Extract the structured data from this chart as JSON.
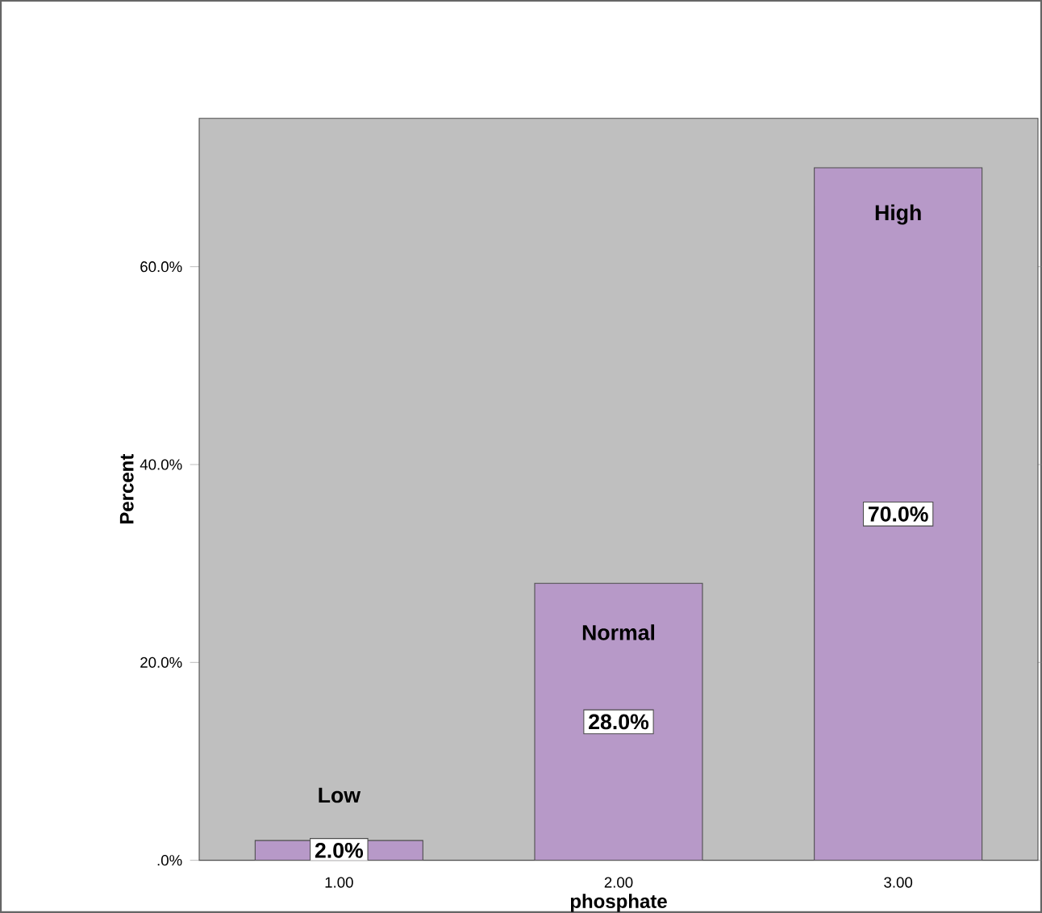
{
  "chart_data": {
    "type": "bar",
    "xlabel": "phosphate",
    "ylabel": "Percent",
    "categories": [
      "1.00",
      "2.00",
      "3.00"
    ],
    "values": [
      2,
      28,
      70
    ],
    "color": "#b799c8",
    "value_labels": [
      "2.0%",
      "28.0%",
      "70.0%"
    ],
    "annotations": [
      "Low",
      "Normal",
      "High"
    ],
    "ylim": [
      0,
      75
    ],
    "yticks": [
      {
        "value": 0,
        "label": ".0%"
      },
      {
        "value": 20,
        "label": "20.0%"
      },
      {
        "value": 40,
        "label": "40.0%"
      },
      {
        "value": 60,
        "label": "60.0%"
      }
    ],
    "grid": false
  }
}
